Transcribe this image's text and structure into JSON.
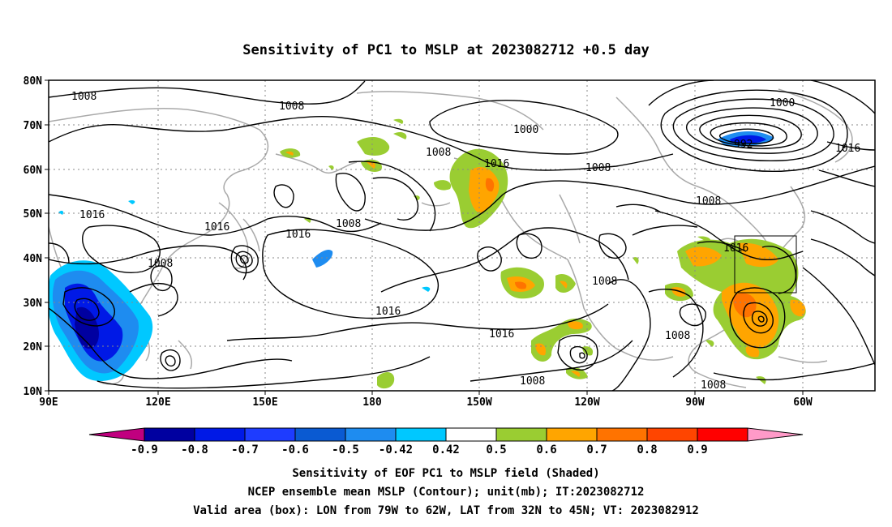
{
  "title": "Sensitivity of PC1 to MSLP at 2023082712 +0.5 day",
  "lat_labels": [
    "80N",
    "70N",
    "60N",
    "50N",
    "40N",
    "30N",
    "20N",
    "10N"
  ],
  "lon_labels": [
    "90E",
    "120E",
    "150E",
    "180",
    "150W",
    "120W",
    "90W",
    "60W"
  ],
  "contour_labels": [
    {
      "text": "1008"
    },
    {
      "text": "1008"
    },
    {
      "text": "1000"
    },
    {
      "text": "1008"
    },
    {
      "text": "1016"
    },
    {
      "text": "1008"
    },
    {
      "text": "1000"
    },
    {
      "text": "992"
    },
    {
      "text": "1016"
    },
    {
      "text": "1008"
    },
    {
      "text": "1016"
    },
    {
      "text": "1016"
    },
    {
      "text": "1008"
    },
    {
      "text": "1016"
    },
    {
      "text": "1008"
    },
    {
      "text": "1016"
    },
    {
      "text": "1008"
    },
    {
      "text": "1016"
    },
    {
      "text": "1016"
    },
    {
      "text": "1008"
    },
    {
      "text": "1008"
    },
    {
      "text": "1008"
    }
  ],
  "colorbar": {
    "colors": [
      "#c0007f",
      "#0000a0",
      "#0019e6",
      "#1e3cff",
      "#0a5ad2",
      "#1e8cf0",
      "#00c8ff",
      "#ffffff",
      "#9acd32",
      "#ffa500",
      "#ff7300",
      "#ff4500",
      "#ff0000",
      "#ff9ac8"
    ],
    "ticks": [
      "-0.9",
      "-0.8",
      "-0.7",
      "-0.6",
      "-0.5",
      "-0.42",
      "0.42",
      "0.5",
      "0.6",
      "0.7",
      "0.8",
      "0.9"
    ]
  },
  "footer": {
    "line1": "Sensitivity of EOF PC1 to MSLP field (Shaded)",
    "line2": "NCEP ensemble mean MSLP (Contour); unit(mb); IT:2023082712",
    "line3": "Valid area (box): LON from 79W to 62W, LAT from 32N to 45N; VT: 2023082912"
  }
}
